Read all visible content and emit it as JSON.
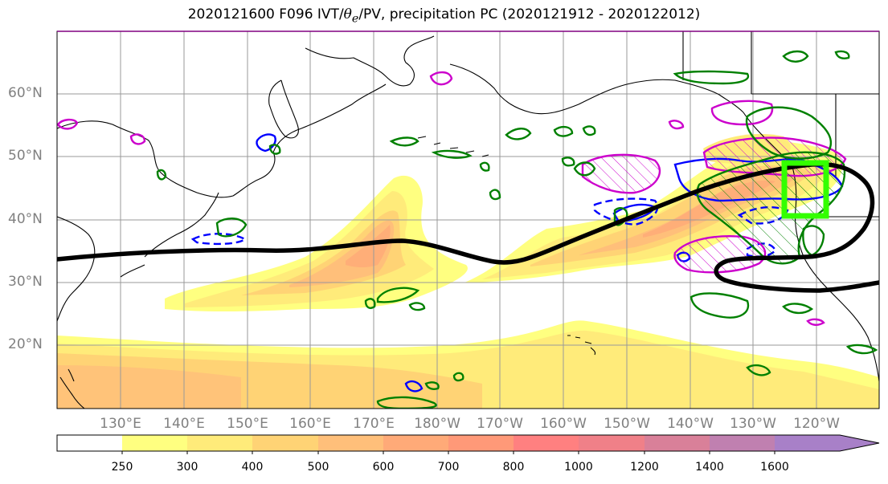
{
  "title": {
    "prefix": "2020121600 F096 IVT/",
    "theta_symbol": "θ",
    "theta_subscript": "e",
    "suffix": "/PV, precipitation PC (2020121912 - 2020122012)"
  },
  "lat_labels": [
    "60°N",
    "50°N",
    "40°N",
    "30°N",
    "20°N"
  ],
  "lon_labels": [
    "130°E",
    "140°E",
    "150°E",
    "160°E",
    "170°E",
    "180°W",
    "170°W",
    "160°W",
    "150°W",
    "140°W",
    "130°W",
    "120°W"
  ],
  "colorbar": {
    "ticks": [
      "250",
      "300",
      "400",
      "500",
      "600",
      "700",
      "800",
      "1000",
      "1200",
      "1400",
      "1600"
    ],
    "colors": [
      "#ffffff",
      "#ffff80",
      "#ffeb7a",
      "#ffd375",
      "#ffbf7a",
      "#ffaa78",
      "#ff9978",
      "#ff8080",
      "#f08088",
      "#d98099",
      "#c080b0",
      "#a880c8"
    ],
    "extend": "max"
  },
  "legend_colors": {
    "ivt_axis": "#000000",
    "pv_contour": "#0000ff",
    "theta_e_contour": "#cc00cc",
    "precip_contour": "#008000",
    "target_box": "#33ff00"
  }
}
